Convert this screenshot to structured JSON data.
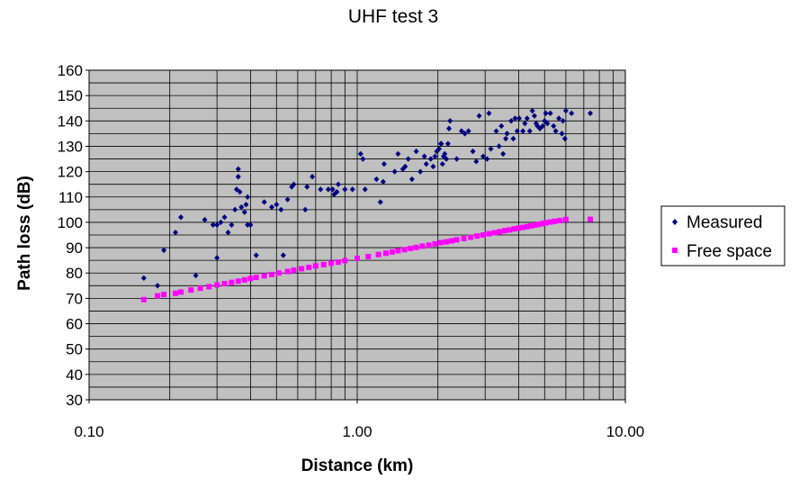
{
  "chart_data": {
    "type": "scatter",
    "title": "UHF test 3",
    "xlabel": "Distance (km)",
    "ylabel": "Path loss (dB)",
    "x_scale": "log",
    "xlim": [
      0.1,
      10
    ],
    "ylim": [
      30,
      160
    ],
    "x_ticks": [
      "0.10",
      "1.00",
      "10.00"
    ],
    "y_ticks": [
      "30",
      "40",
      "50",
      "60",
      "70",
      "80",
      "90",
      "100",
      "110",
      "120",
      "130",
      "140",
      "150",
      "160"
    ],
    "grid": true,
    "legend_position": "right",
    "plot_background": "#c0c0c0",
    "series": [
      {
        "name": "Measured",
        "marker": "diamond",
        "color": "#000080",
        "points": [
          [
            0.16,
            78
          ],
          [
            0.18,
            75
          ],
          [
            0.19,
            89
          ],
          [
            0.21,
            96
          ],
          [
            0.22,
            102
          ],
          [
            0.25,
            79
          ],
          [
            0.27,
            101
          ],
          [
            0.29,
            99
          ],
          [
            0.3,
            86
          ],
          [
            0.3,
            99
          ],
          [
            0.31,
            100
          ],
          [
            0.32,
            102
          ],
          [
            0.33,
            96
          ],
          [
            0.34,
            99
          ],
          [
            0.35,
            105
          ],
          [
            0.355,
            113
          ],
          [
            0.36,
            118
          ],
          [
            0.36,
            121
          ],
          [
            0.365,
            112
          ],
          [
            0.37,
            106
          ],
          [
            0.38,
            104
          ],
          [
            0.385,
            107
          ],
          [
            0.39,
            110
          ],
          [
            0.39,
            99
          ],
          [
            0.4,
            99
          ],
          [
            0.42,
            87
          ],
          [
            0.45,
            108
          ],
          [
            0.48,
            106
          ],
          [
            0.5,
            107
          ],
          [
            0.52,
            105
          ],
          [
            0.53,
            87
          ],
          [
            0.55,
            109
          ],
          [
            0.57,
            114
          ],
          [
            0.58,
            115
          ],
          [
            0.64,
            105
          ],
          [
            0.65,
            114
          ],
          [
            0.68,
            118
          ],
          [
            0.73,
            113
          ],
          [
            0.78,
            113
          ],
          [
            0.81,
            113
          ],
          [
            0.82,
            111
          ],
          [
            0.84,
            112
          ],
          [
            0.85,
            115
          ],
          [
            0.9,
            113
          ],
          [
            0.96,
            113
          ],
          [
            1.03,
            127
          ],
          [
            1.05,
            125
          ],
          [
            1.07,
            113
          ],
          [
            1.18,
            117
          ],
          [
            1.22,
            108
          ],
          [
            1.25,
            116
          ],
          [
            1.26,
            123
          ],
          [
            1.38,
            120
          ],
          [
            1.42,
            127
          ],
          [
            1.48,
            121
          ],
          [
            1.51,
            122
          ],
          [
            1.55,
            125
          ],
          [
            1.6,
            117
          ],
          [
            1.66,
            128
          ],
          [
            1.72,
            120
          ],
          [
            1.78,
            126
          ],
          [
            1.81,
            123
          ],
          [
            1.88,
            125
          ],
          [
            1.92,
            122
          ],
          [
            1.95,
            126
          ],
          [
            1.98,
            128
          ],
          [
            2.02,
            129
          ],
          [
            2.05,
            131
          ],
          [
            2.06,
            131
          ],
          [
            2.08,
            123
          ],
          [
            2.1,
            126
          ],
          [
            2.12,
            127
          ],
          [
            2.15,
            125
          ],
          [
            2.18,
            131
          ],
          [
            2.2,
            137
          ],
          [
            2.22,
            140
          ],
          [
            2.35,
            125
          ],
          [
            2.45,
            136
          ],
          [
            2.52,
            135
          ],
          [
            2.6,
            136
          ],
          [
            2.7,
            128
          ],
          [
            2.78,
            124
          ],
          [
            2.85,
            142
          ],
          [
            2.95,
            126
          ],
          [
            3.05,
            125
          ],
          [
            3.1,
            143
          ],
          [
            3.15,
            129
          ],
          [
            3.3,
            136
          ],
          [
            3.38,
            130
          ],
          [
            3.45,
            138
          ],
          [
            3.5,
            127
          ],
          [
            3.58,
            133
          ],
          [
            3.62,
            135
          ],
          [
            3.75,
            140
          ],
          [
            3.82,
            133
          ],
          [
            3.88,
            141
          ],
          [
            3.95,
            136
          ],
          [
            4.02,
            141
          ],
          [
            4.15,
            136
          ],
          [
            4.22,
            139
          ],
          [
            4.3,
            141
          ],
          [
            4.4,
            136
          ],
          [
            4.5,
            144
          ],
          [
            4.58,
            142
          ],
          [
            4.65,
            139
          ],
          [
            4.7,
            138
          ],
          [
            4.8,
            137
          ],
          [
            4.92,
            138
          ],
          [
            5.0,
            140
          ],
          [
            5.05,
            143
          ],
          [
            5.12,
            139
          ],
          [
            5.25,
            143
          ],
          [
            5.4,
            138
          ],
          [
            5.5,
            136
          ],
          [
            5.65,
            141
          ],
          [
            5.8,
            135
          ],
          [
            5.85,
            140
          ],
          [
            5.95,
            133
          ],
          [
            6.0,
            144
          ],
          [
            6.3,
            143
          ],
          [
            7.4,
            143
          ]
        ]
      },
      {
        "name": "Free space",
        "marker": "square",
        "color": "#ff00ff",
        "points": [
          [
            0.16,
            69.5
          ],
          [
            0.18,
            71
          ],
          [
            0.19,
            71.5
          ],
          [
            0.21,
            72
          ],
          [
            0.22,
            72.5
          ],
          [
            0.24,
            73.3
          ],
          [
            0.26,
            74
          ],
          [
            0.28,
            74.6
          ],
          [
            0.3,
            75.3
          ],
          [
            0.32,
            75.8
          ],
          [
            0.34,
            76.3
          ],
          [
            0.36,
            76.8
          ],
          [
            0.38,
            77.3
          ],
          [
            0.4,
            77.8
          ],
          [
            0.42,
            78.3
          ],
          [
            0.45,
            78.9
          ],
          [
            0.48,
            79.4
          ],
          [
            0.51,
            80
          ],
          [
            0.55,
            80.6
          ],
          [
            0.58,
            81.1
          ],
          [
            0.62,
            81.7
          ],
          [
            0.66,
            82.2
          ],
          [
            0.7,
            82.8
          ],
          [
            0.75,
            83.3
          ],
          [
            0.8,
            83.9
          ],
          [
            0.85,
            84.3
          ],
          [
            0.9,
            84.9
          ],
          [
            1.0,
            85.8
          ],
          [
            1.1,
            86.5
          ],
          [
            1.2,
            87.3
          ],
          [
            1.28,
            87.8
          ],
          [
            1.35,
            88.3
          ],
          [
            1.42,
            88.8
          ],
          [
            1.5,
            89.2
          ],
          [
            1.58,
            89.7
          ],
          [
            1.66,
            90.1
          ],
          [
            1.75,
            90.6
          ],
          [
            1.85,
            91
          ],
          [
            1.95,
            91.5
          ],
          [
            2.05,
            92
          ],
          [
            2.15,
            92.3
          ],
          [
            2.25,
            92.7
          ],
          [
            2.35,
            93.1
          ],
          [
            2.5,
            93.6
          ],
          [
            2.65,
            94.1
          ],
          [
            2.8,
            94.6
          ],
          [
            2.95,
            95
          ],
          [
            3.1,
            95.5
          ],
          [
            3.25,
            95.9
          ],
          [
            3.4,
            96.3
          ],
          [
            3.55,
            96.7
          ],
          [
            3.7,
            97
          ],
          [
            3.85,
            97.4
          ],
          [
            4.0,
            97.7
          ],
          [
            4.15,
            98
          ],
          [
            4.3,
            98.3
          ],
          [
            4.45,
            98.6
          ],
          [
            4.6,
            98.9
          ],
          [
            4.75,
            99.2
          ],
          [
            4.9,
            99.5
          ],
          [
            5.05,
            99.8
          ],
          [
            5.25,
            100.1
          ],
          [
            5.45,
            100.4
          ],
          [
            5.7,
            100.7
          ],
          [
            6.0,
            101.1
          ],
          [
            7.4,
            101.2
          ]
        ]
      }
    ]
  }
}
